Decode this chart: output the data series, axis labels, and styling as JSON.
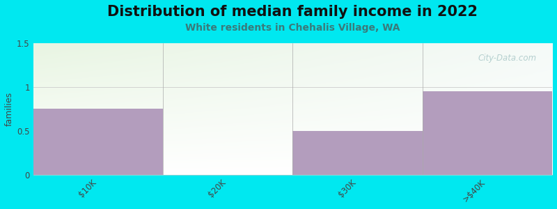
{
  "title": "Distribution of median family income in 2022",
  "subtitle": "White residents in Chehalis Village, WA",
  "categories": [
    "$10K",
    "$20K",
    "$30K",
    ">$40K"
  ],
  "values": [
    0.75,
    0.0,
    0.5,
    0.95
  ],
  "bar_colors": [
    "#b39dbd",
    "#c8ddb0",
    "#b39dbd",
    "#b39dbd"
  ],
  "ylabel": "families",
  "ylim": [
    0,
    1.5
  ],
  "yticks": [
    0,
    0.5,
    1,
    1.5
  ],
  "background_color": "#00e8f0",
  "plot_bg_top_left": "#e8f5e2",
  "plot_bg_top_right": "#f5faf8",
  "plot_bg_bottom": "#ffffff",
  "title_fontsize": 15,
  "subtitle_fontsize": 10,
  "subtitle_color": "#3a7a7a",
  "watermark": "City-Data.com",
  "watermark_color": "#aac8c8"
}
